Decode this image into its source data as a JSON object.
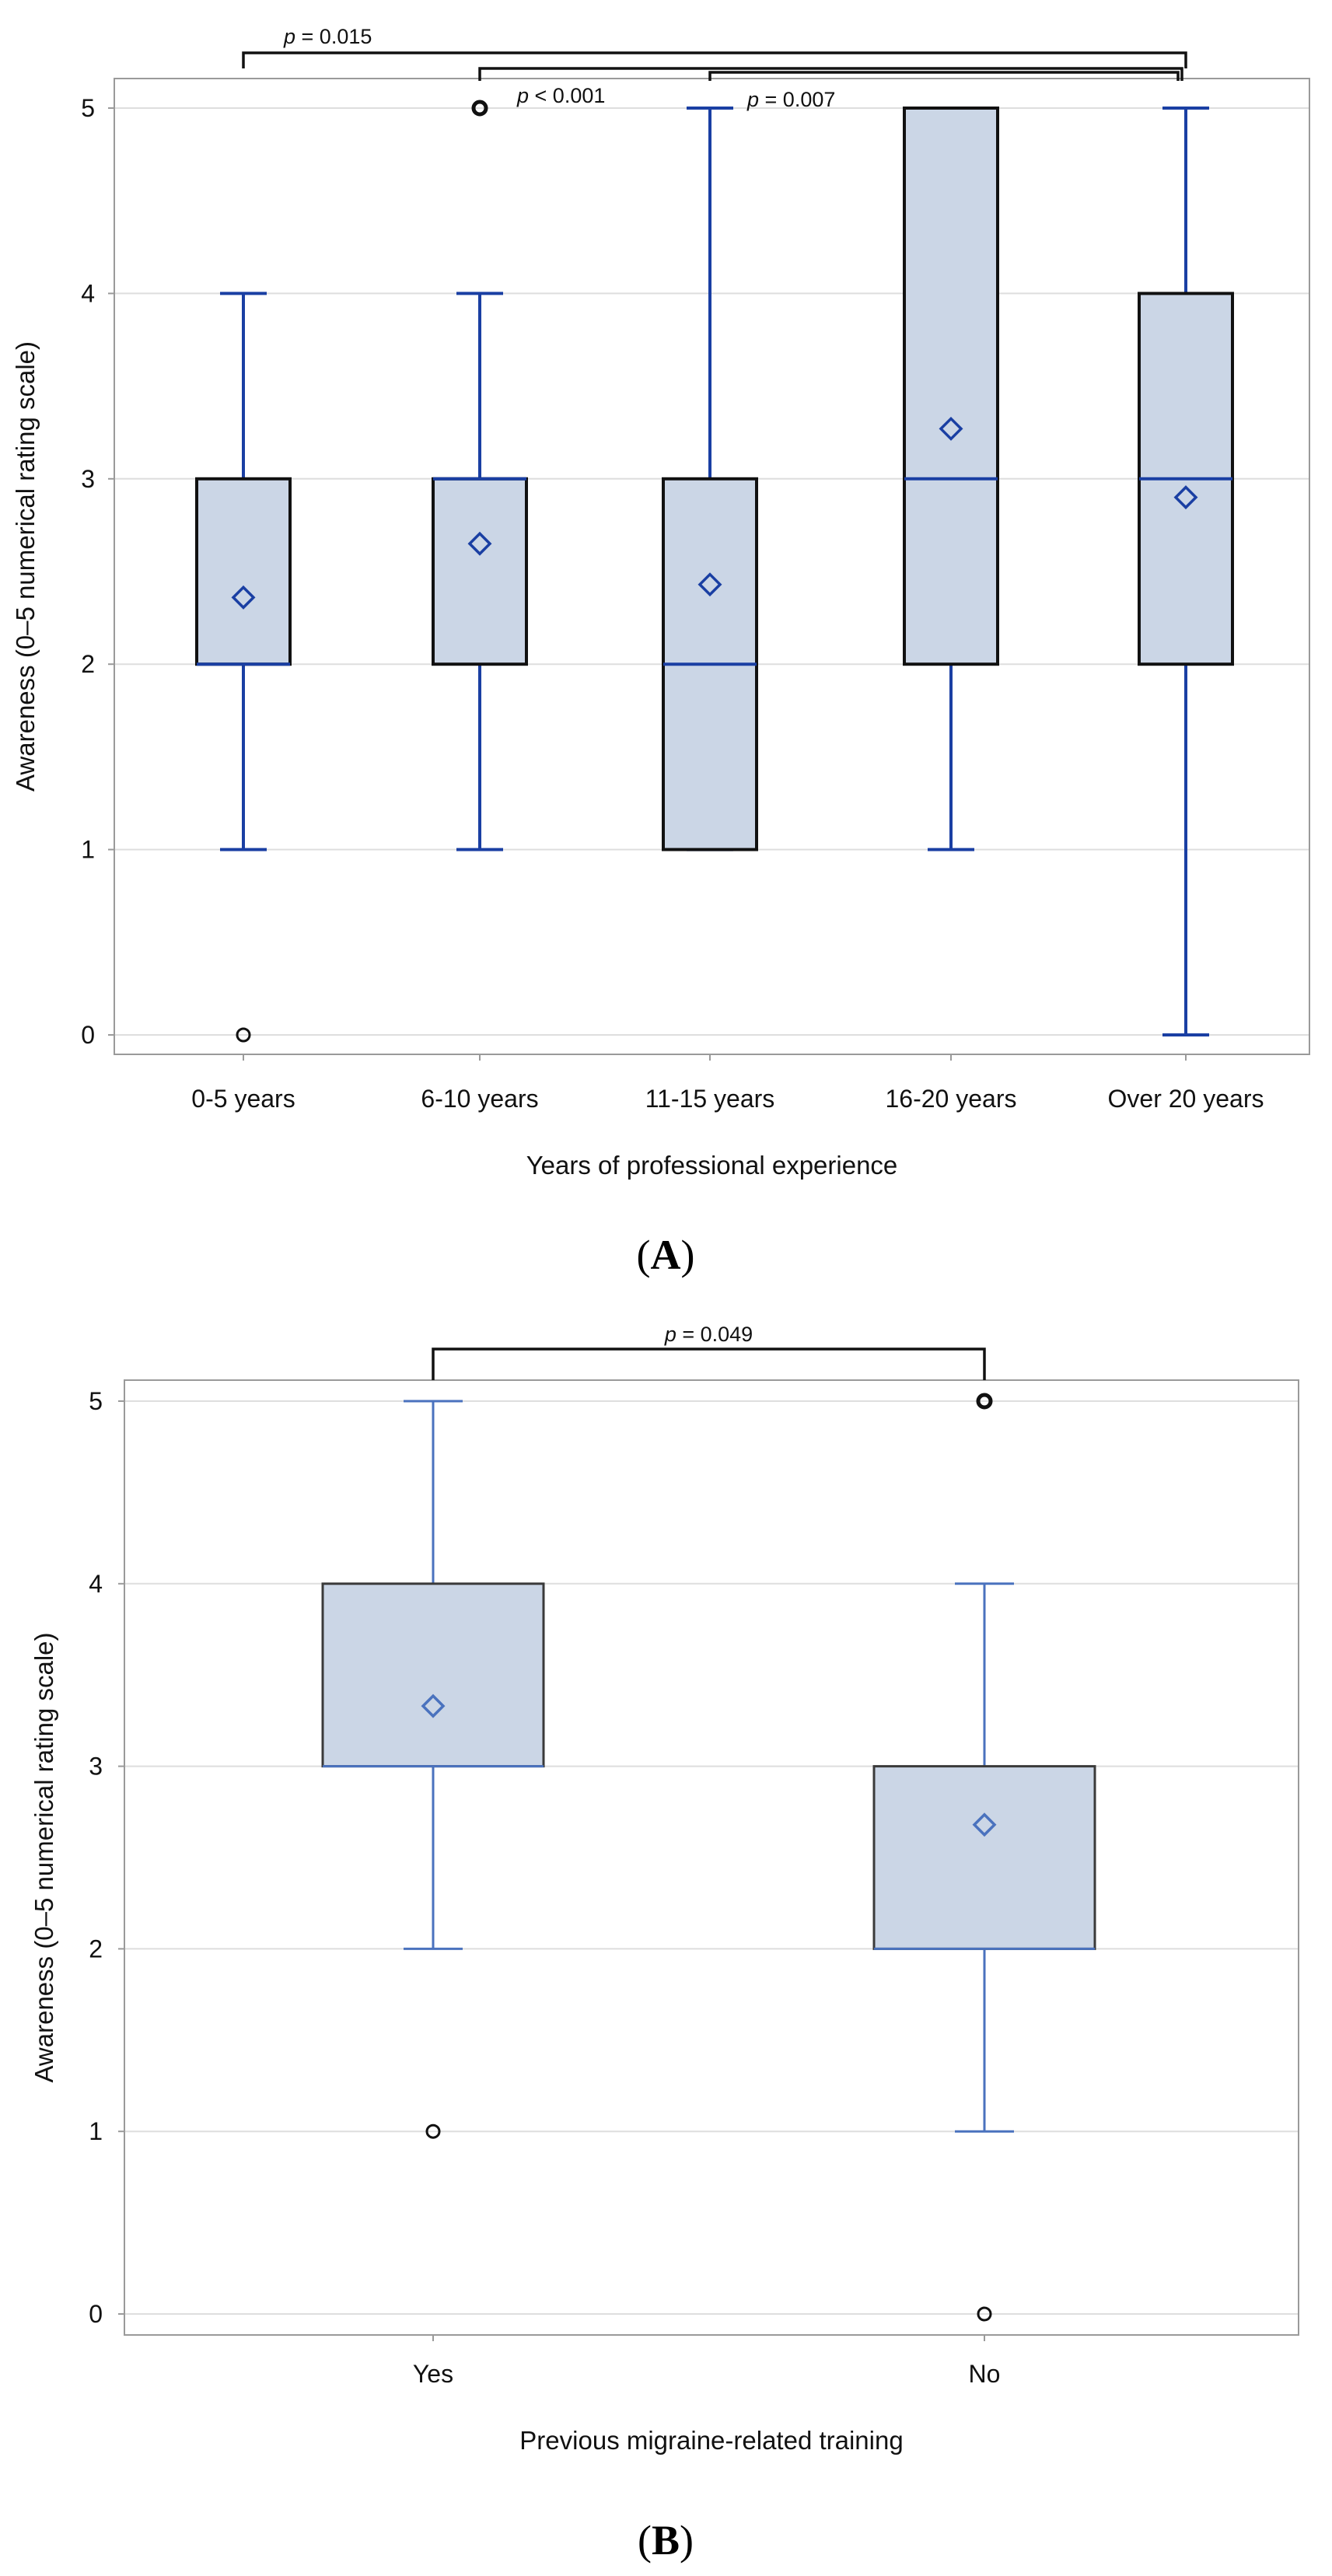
{
  "chart_data": [
    {
      "type": "box",
      "panel_label": "A",
      "xlabel": "Years of professional experience",
      "ylabel": "Awareness (0–5 numerical rating scale)",
      "ylim": [
        0,
        5
      ],
      "yticks": [
        0,
        1,
        2,
        3,
        4,
        5
      ],
      "grid": true,
      "categories": [
        "0-5 years",
        "6-10 years",
        "11-15 years",
        "16-20 years",
        "Over 20 years"
      ],
      "boxes": [
        {
          "category": "0-5 years",
          "whisker_low": 1,
          "q1": 2,
          "median": 2,
          "q3": 3,
          "whisker_high": 4,
          "mean": 2.36,
          "outliers": [
            0
          ]
        },
        {
          "category": "6-10 years",
          "whisker_low": 1,
          "q1": 2,
          "median": 3,
          "q3": 3,
          "whisker_high": 4,
          "mean": 2.65,
          "outliers": [
            5
          ]
        },
        {
          "category": "11-15 years",
          "whisker_low": 1,
          "q1": 1,
          "median": 2,
          "q3": 3,
          "whisker_high": 5,
          "mean": 2.43,
          "outliers": []
        },
        {
          "category": "16-20 years",
          "whisker_low": 1,
          "q1": 2,
          "median": 3,
          "q3": 5,
          "whisker_high": 5,
          "mean": 3.27,
          "outliers": []
        },
        {
          "category": "Over 20 years",
          "whisker_low": 0,
          "q1": 2,
          "median": 3,
          "q3": 4,
          "whisker_high": 5,
          "mean": 2.9,
          "outliers": []
        }
      ],
      "comparisons": [
        {
          "from": "0-5 years",
          "to": "Over 20 years",
          "p_symbol": "p",
          "p_value": "= 0.015"
        },
        {
          "from": "6-10 years",
          "to": "Over 20 years",
          "p_symbol": "p",
          "p_value": "< 0.001"
        },
        {
          "from": "11-15 years",
          "to": "Over 20 years",
          "p_symbol": "p",
          "p_value": "= 0.007"
        }
      ]
    },
    {
      "type": "box",
      "panel_label": "B",
      "xlabel": "Previous migraine-related training",
      "ylabel": "Awareness (0–5 numerical rating scale)",
      "ylim": [
        0,
        5
      ],
      "yticks": [
        0,
        1,
        2,
        3,
        4,
        5
      ],
      "grid": true,
      "categories": [
        "Yes",
        "No"
      ],
      "boxes": [
        {
          "category": "Yes",
          "whisker_low": 2,
          "q1": 3,
          "median": 3,
          "q3": 4,
          "whisker_high": 5,
          "mean": 3.33,
          "outliers": [
            1
          ]
        },
        {
          "category": "No",
          "whisker_low": 1,
          "q1": 2,
          "median": 2,
          "q3": 3,
          "whisker_high": 4,
          "mean": 2.68,
          "outliers": [
            0,
            5
          ]
        }
      ],
      "comparisons": [
        {
          "from": "Yes",
          "to": "No",
          "p_symbol": "p",
          "p_value": "= 0.049"
        }
      ]
    }
  ],
  "colors": {
    "box_fill": "#cbd6e6",
    "box_edge_a": "#111111",
    "box_edge_b": "#3a3a3a",
    "whisker_a": "#1a3fa3",
    "whisker_b": "#4a72be",
    "mean_marker_a": "#1a3fa3",
    "mean_marker_b": "#4a72be",
    "gridline": "#dedede",
    "frame": "#9a9a9a",
    "bracket": "#111111",
    "outlier": "#111111"
  }
}
